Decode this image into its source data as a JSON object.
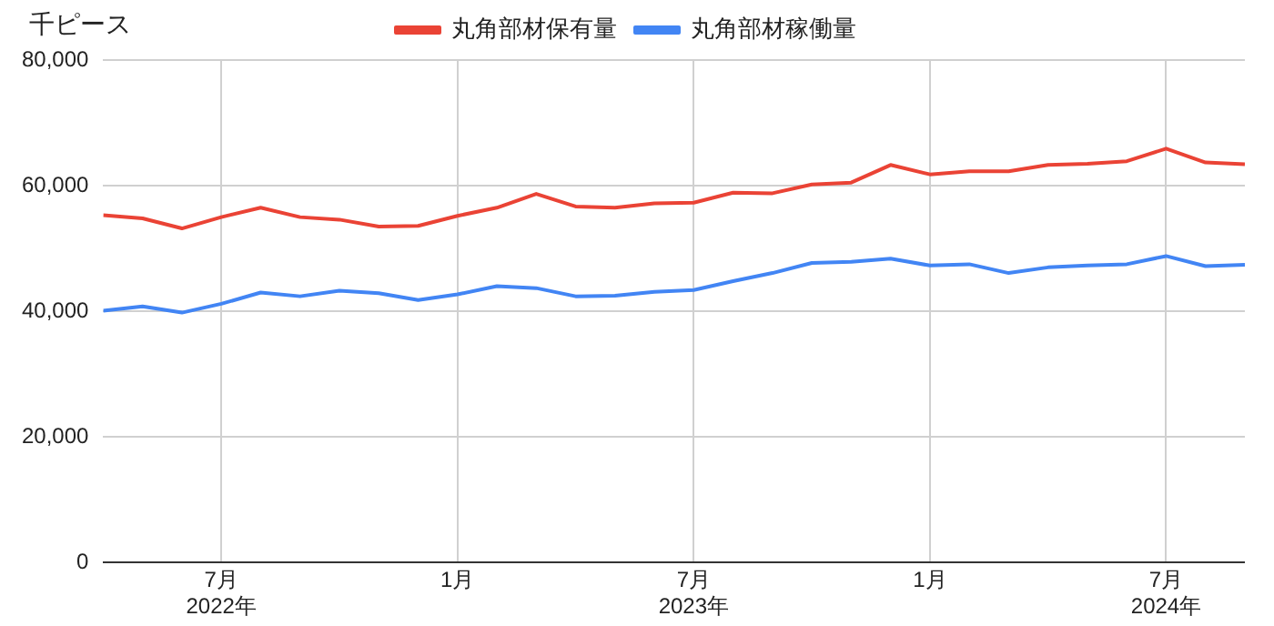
{
  "chart_data": {
    "type": "line",
    "ylabel": "千ピース",
    "x": [
      "2022-04",
      "2022-05",
      "2022-06",
      "2022-07",
      "2022-08",
      "2022-09",
      "2022-10",
      "2022-11",
      "2022-12",
      "2023-01",
      "2023-02",
      "2023-03",
      "2023-04",
      "2023-05",
      "2023-06",
      "2023-07",
      "2023-08",
      "2023-09",
      "2023-10",
      "2023-11",
      "2023-12",
      "2024-01",
      "2024-02",
      "2024-03",
      "2024-04",
      "2024-05",
      "2024-06",
      "2024-07",
      "2024-08",
      "2024-09"
    ],
    "series": [
      {
        "name": "丸角部材保有量",
        "color": "#ea4335",
        "values": [
          55300,
          54800,
          53200,
          55000,
          56500,
          55000,
          54600,
          53500,
          53600,
          55200,
          56500,
          58700,
          56700,
          56500,
          57200,
          57300,
          58900,
          58800,
          60200,
          60500,
          63300,
          61800,
          62300,
          62300,
          63300,
          63500,
          63900,
          65900,
          63700,
          63400
        ]
      },
      {
        "name": "丸角部材稼働量",
        "color": "#4285f4",
        "values": [
          40100,
          40800,
          39800,
          41200,
          43000,
          42400,
          43300,
          42900,
          41800,
          42700,
          44000,
          43700,
          42400,
          42500,
          43100,
          43400,
          44800,
          46100,
          47700,
          47900,
          48400,
          47300,
          47500,
          46100,
          47000,
          47300,
          47500,
          48800,
          47200,
          47400
        ]
      }
    ],
    "xlim": [
      "2022-04",
      "2024-09"
    ],
    "xticks": [
      {
        "value": "2022-07",
        "label": "7月\n2022年"
      },
      {
        "value": "2023-01",
        "label": "1月"
      },
      {
        "value": "2023-07",
        "label": "7月\n2023年"
      },
      {
        "value": "2024-01",
        "label": "1月"
      },
      {
        "value": "2024-07",
        "label": "7月\n2024年"
      }
    ],
    "ylim": [
      0,
      80000
    ],
    "yticks": [
      0,
      {
        "value": 20000,
        "label": "20,000"
      },
      {
        "value": 40000,
        "label": "40,000"
      },
      {
        "value": 60000,
        "label": "60,000"
      },
      {
        "value": 80000,
        "label": "80,000"
      }
    ],
    "grid": true,
    "legend": "top",
    "marker": "none",
    "line_style": "solid"
  }
}
